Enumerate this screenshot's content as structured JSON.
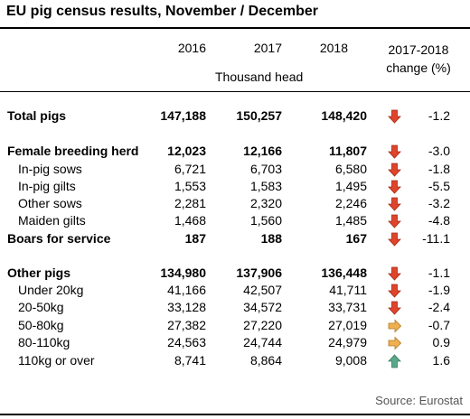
{
  "title": "EU pig census results, November / December",
  "header": {
    "years": [
      "2016",
      "2017",
      "2018"
    ],
    "unit": "Thousand head",
    "change_line1": "2017-2018",
    "change_line2": "change (%)"
  },
  "rows": [
    {
      "label": "Total pigs",
      "v2016": "147,188",
      "v2017": "150,257",
      "v2018": "148,420",
      "change": "-1.2",
      "trend": "down"
    },
    {
      "label": "Female breeding herd",
      "v2016": "12,023",
      "v2017": "12,166",
      "v2018": "11,807",
      "change": "-3.0",
      "trend": "down"
    },
    {
      "label": "In-pig sows",
      "v2016": "6,721",
      "v2017": "6,703",
      "v2018": "6,580",
      "change": "-1.8",
      "trend": "down"
    },
    {
      "label": "In-pig gilts",
      "v2016": "1,553",
      "v2017": "1,583",
      "v2018": "1,495",
      "change": "-5.5",
      "trend": "down"
    },
    {
      "label": "Other sows",
      "v2016": "2,281",
      "v2017": "2,320",
      "v2018": "2,246",
      "change": "-3.2",
      "trend": "down"
    },
    {
      "label": "Maiden gilts",
      "v2016": "1,468",
      "v2017": "1,560",
      "v2018": "1,485",
      "change": "-4.8",
      "trend": "down"
    },
    {
      "label": "Boars for service",
      "v2016": "187",
      "v2017": "188",
      "v2018": "167",
      "change": "-11.1",
      "trend": "down"
    },
    {
      "label": "Other pigs",
      "v2016": "134,980",
      "v2017": "137,906",
      "v2018": "136,448",
      "change": "-1.1",
      "trend": "down"
    },
    {
      "label": "Under 20kg",
      "v2016": "41,166",
      "v2017": "42,507",
      "v2018": "41,711",
      "change": "-1.9",
      "trend": "down"
    },
    {
      "label": "20-50kg",
      "v2016": "33,128",
      "v2017": "34,572",
      "v2018": "33,731",
      "change": "-2.4",
      "trend": "down"
    },
    {
      "label": "50-80kg",
      "v2016": "27,382",
      "v2017": "27,220",
      "v2018": "27,019",
      "change": "-0.7",
      "trend": "flat"
    },
    {
      "label": "80-110kg",
      "v2016": "24,563",
      "v2017": "24,744",
      "v2018": "24,979",
      "change": "0.9",
      "trend": "flat"
    },
    {
      "label": "110kg or over",
      "v2016": "8,741",
      "v2017": "8,864",
      "v2018": "9,008",
      "change": "1.6",
      "trend": "up"
    }
  ],
  "source": "Source: Eurostat",
  "colors": {
    "down": "#e0442a",
    "flat": "#f0b050",
    "up": "#5aa88a"
  },
  "icons": {
    "down": "arrow-down-icon",
    "flat": "arrow-right-icon",
    "up": "arrow-up-icon"
  }
}
